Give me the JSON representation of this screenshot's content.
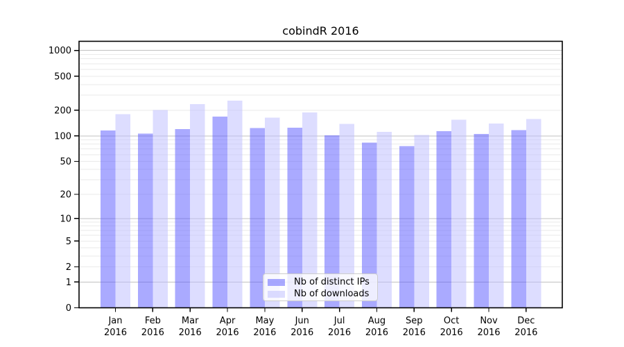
{
  "chart_data": {
    "type": "bar",
    "title": "cobindR 2016",
    "categories": [
      "Jan",
      "Feb",
      "Mar",
      "Apr",
      "May",
      "Jun",
      "Jul",
      "Aug",
      "Sep",
      "Oct",
      "Nov",
      "Dec"
    ],
    "category_year": "2016",
    "series": [
      {
        "name": "Nb of distinct IPs",
        "color": "rgba(85,85,255,0.5)",
        "values": [
          116,
          106,
          120,
          169,
          124,
          125,
          101,
          83,
          76,
          114,
          105,
          117
        ]
      },
      {
        "name": "Nb of downloads",
        "color": "rgba(187,187,255,0.5)",
        "values": [
          179,
          201,
          237,
          258,
          164,
          189,
          138,
          111,
          102,
          155,
          139,
          158
        ]
      }
    ],
    "xlabel": "",
    "ylabel": "",
    "yscale": "log1p",
    "ylim": [
      0,
      1280
    ],
    "yticks": [
      0,
      1,
      2,
      5,
      10,
      20,
      50,
      100,
      200,
      500,
      1000
    ],
    "grid": {
      "on": true,
      "major_values": [
        1,
        10,
        100,
        1000
      ],
      "minor_values": [
        2,
        3,
        4,
        5,
        6,
        7,
        8,
        9,
        20,
        30,
        40,
        50,
        60,
        70,
        80,
        90,
        200,
        300,
        400,
        500,
        600,
        700,
        800,
        900
      ],
      "major_color": "#c0c0c0",
      "minor_color": "#eaeaea"
    },
    "legend_position": "bottom-center",
    "axis_color": "#000000",
    "tick_label_color": "#000000",
    "background_color": "#ffffff"
  }
}
